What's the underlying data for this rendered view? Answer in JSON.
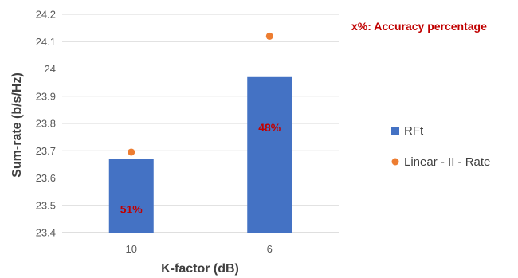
{
  "chart_data": {
    "type": "bar",
    "categories": [
      "10",
      "6"
    ],
    "series": [
      {
        "name": "RFt",
        "kind": "bar",
        "values": [
          23.67,
          23.97
        ],
        "color": "#4472c4"
      },
      {
        "name": "Linear - II - Rate",
        "kind": "scatter",
        "values": [
          23.695,
          24.12
        ],
        "color": "#ed7d31"
      }
    ],
    "bar_labels": [
      "51%",
      "48%"
    ],
    "annotation": "x%: Accuracy percentage",
    "xlabel": "K-factor (dB)",
    "ylabel": "Sum-rate (b/s/Hz)",
    "ylim": [
      23.4,
      24.2
    ],
    "yticks": [
      "23.4",
      "23.5",
      "23.6",
      "23.7",
      "23.8",
      "23.9",
      "24",
      "24.1",
      "24.2"
    ],
    "grid": true,
    "legend_position": "right"
  }
}
